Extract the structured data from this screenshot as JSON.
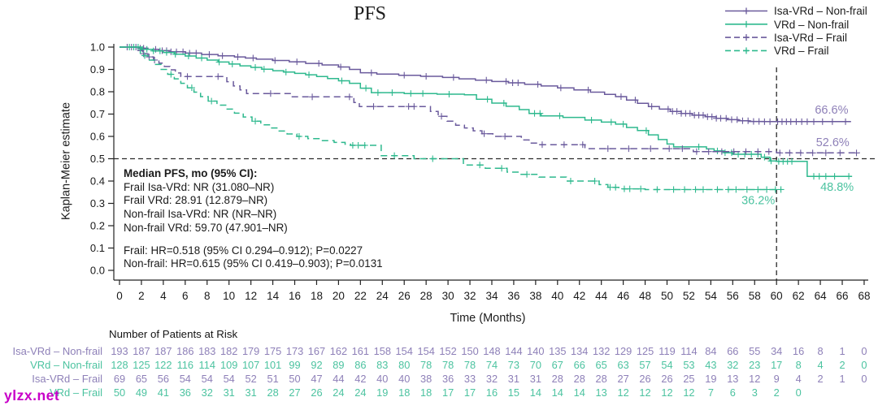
{
  "title": "PFS",
  "watermark": "ylzx.net",
  "colors": {
    "purple_line": "#6a5a9c",
    "purple_text": "#8e80b8",
    "green_line": "#2eb98e",
    "green_text": "#4cc3a0",
    "reference": "#2b2b2b",
    "axis": "#222222"
  },
  "legend": {
    "entries": [
      {
        "label": "Isa-VRd – Non-frail",
        "color_key": "purple",
        "dashed": false
      },
      {
        "label": "VRd – Non-frail",
        "color_key": "green",
        "dashed": false
      },
      {
        "label": "Isa-VRd – Frail",
        "color_key": "purple",
        "dashed": true
      },
      {
        "label": "VRd – Frail",
        "color_key": "green",
        "dashed": true
      }
    ]
  },
  "annotation": {
    "lines": [
      "Median PFS, mo (95% CI):",
      "Frail Isa-VRd: NR (31.080–NR)",
      "Frail VRd: 28.91 (12.879–NR)",
      "Non-frail Isa-VRd: NR (NR–NR)",
      "Non-frail VRd: 59.70 (47.901–NR)"
    ],
    "hr_lines": [
      "Frail: HR=0.518 (95% CI 0.294–0.912); P=0.0227",
      "Non-frail: HR=0.615 (95% CI 0.419–0.903); P=0.0131"
    ]
  },
  "chart_data": {
    "type": "line",
    "subtype": "kaplan-meier-step",
    "title": "PFS",
    "xlabel": "Time (Months)",
    "ylabel": "Kaplan-Meier estimate",
    "xlim": [
      0,
      68
    ],
    "xtick_step": 2,
    "ylim": [
      0.0,
      1.0
    ],
    "ytick_step": 0.1,
    "grid": false,
    "legend_position": "top-right",
    "reference_lines": {
      "horizontal_value": 0.5,
      "vertical_month": 60
    },
    "series": [
      {
        "name": "Isa-VRd – Non-frail",
        "color_key": "purple",
        "dashed": false,
        "steps": [
          [
            0,
            1
          ],
          [
            1.8,
            0.995
          ],
          [
            2.6,
            0.99
          ],
          [
            3.6,
            0.984
          ],
          [
            4.6,
            0.979
          ],
          [
            6,
            0.973
          ],
          [
            7.5,
            0.967
          ],
          [
            9,
            0.961
          ],
          [
            10.5,
            0.956
          ],
          [
            11.5,
            0.951
          ],
          [
            12.5,
            0.946
          ],
          [
            14,
            0.94
          ],
          [
            15.5,
            0.934
          ],
          [
            17,
            0.927
          ],
          [
            18.5,
            0.92
          ],
          [
            20,
            0.911
          ],
          [
            21,
            0.9
          ],
          [
            22,
            0.885
          ],
          [
            23.5,
            0.879
          ],
          [
            25.5,
            0.874
          ],
          [
            27.5,
            0.869
          ],
          [
            29.5,
            0.864
          ],
          [
            31,
            0.858
          ],
          [
            32.5,
            0.852
          ],
          [
            34,
            0.846
          ],
          [
            35.5,
            0.84
          ],
          [
            37,
            0.833
          ],
          [
            38.5,
            0.826
          ],
          [
            40,
            0.817
          ],
          [
            41.5,
            0.808
          ],
          [
            43,
            0.798
          ],
          [
            44.3,
            0.788
          ],
          [
            45.3,
            0.778
          ],
          [
            46.3,
            0.763
          ],
          [
            47.3,
            0.748
          ],
          [
            48.3,
            0.734
          ],
          [
            49.3,
            0.722
          ],
          [
            50.3,
            0.712
          ],
          [
            51.3,
            0.703
          ],
          [
            52.3,
            0.695
          ],
          [
            53.5,
            0.688
          ],
          [
            54.5,
            0.681
          ],
          [
            55.5,
            0.675
          ],
          [
            56.5,
            0.67
          ],
          [
            57.5,
            0.667
          ],
          [
            58.8,
            0.666
          ],
          [
            66.8,
            0.666
          ]
        ],
        "censor_months": [
          0.7,
          1.1,
          1.5,
          1.9,
          2.2,
          3.3,
          3.9,
          4.3,
          4.7,
          5.2,
          5.8,
          6.4,
          7,
          8.2,
          9.4,
          10.8,
          12.2,
          14.2,
          16.2,
          18.2,
          20.2,
          23,
          26,
          28,
          30.5,
          33.5,
          35.3,
          35.9,
          36.4,
          38.2,
          40.3,
          42.8,
          45.8,
          47.1,
          48.6,
          50.1,
          50.5,
          50.9,
          51.3,
          51.7,
          52.1,
          52.5,
          52.9,
          53.3,
          53.7,
          54.1,
          54.5,
          54.9,
          55.4,
          55.9,
          56.4,
          56.9,
          57.4,
          57.9,
          58.4,
          58.9,
          59.4,
          60.1,
          60.5,
          60.9,
          61.3,
          61.8,
          62.3,
          62.8,
          63.4,
          64.2,
          65.1,
          66.3
        ]
      },
      {
        "name": "VRd – Non-frail",
        "color_key": "green",
        "dashed": false,
        "steps": [
          [
            0,
            1
          ],
          [
            2,
            0.99
          ],
          [
            3,
            0.983
          ],
          [
            4,
            0.976
          ],
          [
            5,
            0.968
          ],
          [
            6,
            0.96
          ],
          [
            7,
            0.951
          ],
          [
            8,
            0.942
          ],
          [
            9,
            0.933
          ],
          [
            10,
            0.924
          ],
          [
            11,
            0.916
          ],
          [
            12,
            0.909
          ],
          [
            13,
            0.901
          ],
          [
            14,
            0.894
          ],
          [
            15,
            0.888
          ],
          [
            16,
            0.882
          ],
          [
            17,
            0.876
          ],
          [
            18,
            0.868
          ],
          [
            19,
            0.859
          ],
          [
            20,
            0.849
          ],
          [
            21,
            0.838
          ],
          [
            22,
            0.816
          ],
          [
            23,
            0.796
          ],
          [
            26,
            0.792
          ],
          [
            29,
            0.789
          ],
          [
            31.5,
            0.786
          ],
          [
            32.6,
            0.766
          ],
          [
            34,
            0.749
          ],
          [
            35.3,
            0.735
          ],
          [
            36.5,
            0.72
          ],
          [
            37.4,
            0.703
          ],
          [
            38.5,
            0.692
          ],
          [
            40.5,
            0.685
          ],
          [
            42.5,
            0.673
          ],
          [
            44,
            0.664
          ],
          [
            45.3,
            0.655
          ],
          [
            46.3,
            0.64
          ],
          [
            47.3,
            0.626
          ],
          [
            48.3,
            0.607
          ],
          [
            49.2,
            0.586
          ],
          [
            50,
            0.566
          ],
          [
            50.6,
            0.553
          ],
          [
            53.6,
            0.544
          ],
          [
            54.3,
            0.535
          ],
          [
            55.2,
            0.527
          ],
          [
            56,
            0.52
          ],
          [
            58.6,
            0.507
          ],
          [
            59.4,
            0.49
          ],
          [
            60,
            0.488
          ],
          [
            62.8,
            0.421
          ],
          [
            66.9,
            0.421
          ]
        ],
        "censor_months": [
          0.9,
          1.3,
          1.7,
          2.1,
          2.5,
          3.1,
          3.7,
          4.3,
          5.1,
          6.3,
          7.5,
          9.1,
          10.3,
          12.4,
          13.2,
          15.2,
          17.3,
          20.3,
          22.5,
          23.6,
          24.9,
          26.6,
          27.7,
          30.1,
          33.6,
          35.1,
          37.9,
          38.4,
          40.2,
          43.1,
          44.9,
          46,
          48.1,
          52.9,
          54.6,
          55.3,
          55.9,
          56.5,
          57.1,
          57.7,
          58.3,
          58.9,
          59.5,
          60.2,
          60.6,
          61,
          61.4,
          63.4,
          63.9,
          64.5,
          65.3,
          66.6
        ]
      },
      {
        "name": "Isa-VRd – Frail",
        "color_key": "purple",
        "dashed": true,
        "steps": [
          [
            0,
            1
          ],
          [
            1.6,
            0.985
          ],
          [
            2.1,
            0.97
          ],
          [
            2.6,
            0.956
          ],
          [
            3.1,
            0.942
          ],
          [
            3.6,
            0.928
          ],
          [
            4.1,
            0.913
          ],
          [
            4.6,
            0.898
          ],
          [
            5.1,
            0.884
          ],
          [
            5.6,
            0.868
          ],
          [
            9.8,
            0.845
          ],
          [
            10.4,
            0.826
          ],
          [
            11,
            0.808
          ],
          [
            11.6,
            0.792
          ],
          [
            15.7,
            0.777
          ],
          [
            21.4,
            0.752
          ],
          [
            21.9,
            0.734
          ],
          [
            28.4,
            0.712
          ],
          [
            29.1,
            0.69
          ],
          [
            29.9,
            0.668
          ],
          [
            30.7,
            0.65
          ],
          [
            31.5,
            0.638
          ],
          [
            32.3,
            0.625
          ],
          [
            33.1,
            0.612
          ],
          [
            34.1,
            0.6
          ],
          [
            36.7,
            0.584
          ],
          [
            37.4,
            0.57
          ],
          [
            38.2,
            0.563
          ],
          [
            42.5,
            0.545
          ],
          [
            52.4,
            0.532
          ],
          [
            60,
            0.526
          ],
          [
            67.6,
            0.526
          ]
        ],
        "censor_months": [
          2.2,
          2.7,
          3.2,
          6.2,
          9,
          13.8,
          17.6,
          21,
          23.2,
          26.4,
          26.9,
          29.4,
          33.3,
          35.2,
          38.6,
          40.6,
          42.3,
          44.6,
          46.5,
          48.5,
          50.2,
          51.4,
          52.7,
          53.8,
          55,
          56.1,
          57.2,
          58.3,
          59.3,
          60.3,
          61.2,
          62.2,
          63.3,
          64.5,
          65.8,
          67.3
        ]
      },
      {
        "name": "VRd – Frail",
        "color_key": "green",
        "dashed": true,
        "steps": [
          [
            0,
            1
          ],
          [
            1.9,
            0.962
          ],
          [
            2.6,
            0.942
          ],
          [
            3.2,
            0.922
          ],
          [
            3.8,
            0.9
          ],
          [
            4.4,
            0.878
          ],
          [
            5,
            0.858
          ],
          [
            5.6,
            0.838
          ],
          [
            6.2,
            0.818
          ],
          [
            6.8,
            0.798
          ],
          [
            7.4,
            0.778
          ],
          [
            8.1,
            0.758
          ],
          [
            8.9,
            0.74
          ],
          [
            9.7,
            0.722
          ],
          [
            10.5,
            0.704
          ],
          [
            11.3,
            0.687
          ],
          [
            12.1,
            0.668
          ],
          [
            12.9,
            0.652
          ],
          [
            13.7,
            0.638
          ],
          [
            14.5,
            0.624
          ],
          [
            15.3,
            0.611
          ],
          [
            16.2,
            0.6
          ],
          [
            17.2,
            0.59
          ],
          [
            18.4,
            0.581
          ],
          [
            19.6,
            0.573
          ],
          [
            20.6,
            0.565
          ],
          [
            21.1,
            0.56
          ],
          [
            23.9,
            0.514
          ],
          [
            26.9,
            0.5
          ],
          [
            31.4,
            0.472
          ],
          [
            33.4,
            0.457
          ],
          [
            35.4,
            0.44
          ],
          [
            36.6,
            0.43
          ],
          [
            38.3,
            0.418
          ],
          [
            40.8,
            0.4
          ],
          [
            43.8,
            0.384
          ],
          [
            44.6,
            0.372
          ],
          [
            45.6,
            0.365
          ],
          [
            48,
            0.362
          ],
          [
            60.4,
            0.362
          ]
        ],
        "censor_months": [
          2.3,
          4.7,
          6.6,
          8.4,
          12.4,
          16.4,
          21.3,
          21.8,
          22.4,
          25.1,
          28.6,
          32.9,
          34.9,
          37.2,
          41.2,
          43.4,
          44.8,
          45.3,
          46.1,
          46.6,
          47.6,
          49.1,
          50.6,
          51.6,
          52.6,
          53.3,
          54.6,
          55.6,
          56.3,
          57.3,
          58.3,
          59.1,
          59.9,
          60.4
        ]
      }
    ],
    "value_labels": [
      {
        "text": "66.6%",
        "color_key": "purple",
        "month": 63.5,
        "value": 0.72
      },
      {
        "text": "52.6%",
        "color_key": "purple",
        "month": 63.6,
        "value": 0.575
      },
      {
        "text": "48.8%",
        "color_key": "green",
        "month": 64.0,
        "value": 0.375
      },
      {
        "text": "36.2%",
        "color_key": "green",
        "month": 56.8,
        "value": 0.315
      }
    ],
    "risk_table": {
      "title": "Number of Patients at Risk",
      "timepoints": [
        0,
        2,
        4,
        6,
        8,
        10,
        12,
        14,
        16,
        18,
        20,
        22,
        24,
        26,
        28,
        30,
        32,
        34,
        36,
        38,
        40,
        42,
        44,
        46,
        48,
        50,
        52,
        54,
        56,
        58,
        60,
        62,
        64,
        66,
        68
      ],
      "rows": [
        {
          "label": "Isa-VRd – Non-frail",
          "color_key": "purple",
          "counts": [
            193,
            187,
            187,
            186,
            183,
            182,
            179,
            175,
            173,
            167,
            162,
            161,
            158,
            154,
            154,
            152,
            150,
            148,
            144,
            140,
            135,
            134,
            132,
            129,
            125,
            119,
            114,
            84,
            66,
            55,
            34,
            16,
            8,
            1,
            0
          ]
        },
        {
          "label": "VRd – Non-frail",
          "color_key": "green",
          "counts": [
            128,
            125,
            122,
            116,
            114,
            109,
            107,
            101,
            99,
            92,
            89,
            86,
            83,
            80,
            78,
            78,
            78,
            74,
            73,
            70,
            67,
            66,
            65,
            63,
            57,
            54,
            53,
            43,
            32,
            23,
            17,
            8,
            4,
            2,
            0
          ]
        },
        {
          "label": "Isa-VRd – Frail",
          "color_key": "purple",
          "counts": [
            69,
            65,
            56,
            54,
            54,
            54,
            52,
            51,
            50,
            47,
            44,
            42,
            40,
            40,
            38,
            36,
            33,
            32,
            31,
            31,
            28,
            28,
            28,
            27,
            26,
            26,
            25,
            19,
            13,
            12,
            9,
            4,
            2,
            1,
            0
          ]
        },
        {
          "label": "VRd – Frail",
          "color_key": "green",
          "counts": [
            50,
            49,
            41,
            36,
            32,
            31,
            31,
            28,
            27,
            26,
            24,
            24,
            19,
            18,
            18,
            17,
            17,
            16,
            15,
            14,
            14,
            14,
            13,
            12,
            12,
            12,
            12,
            7,
            6,
            3,
            2,
            0,
            null,
            null,
            null
          ]
        }
      ]
    }
  }
}
